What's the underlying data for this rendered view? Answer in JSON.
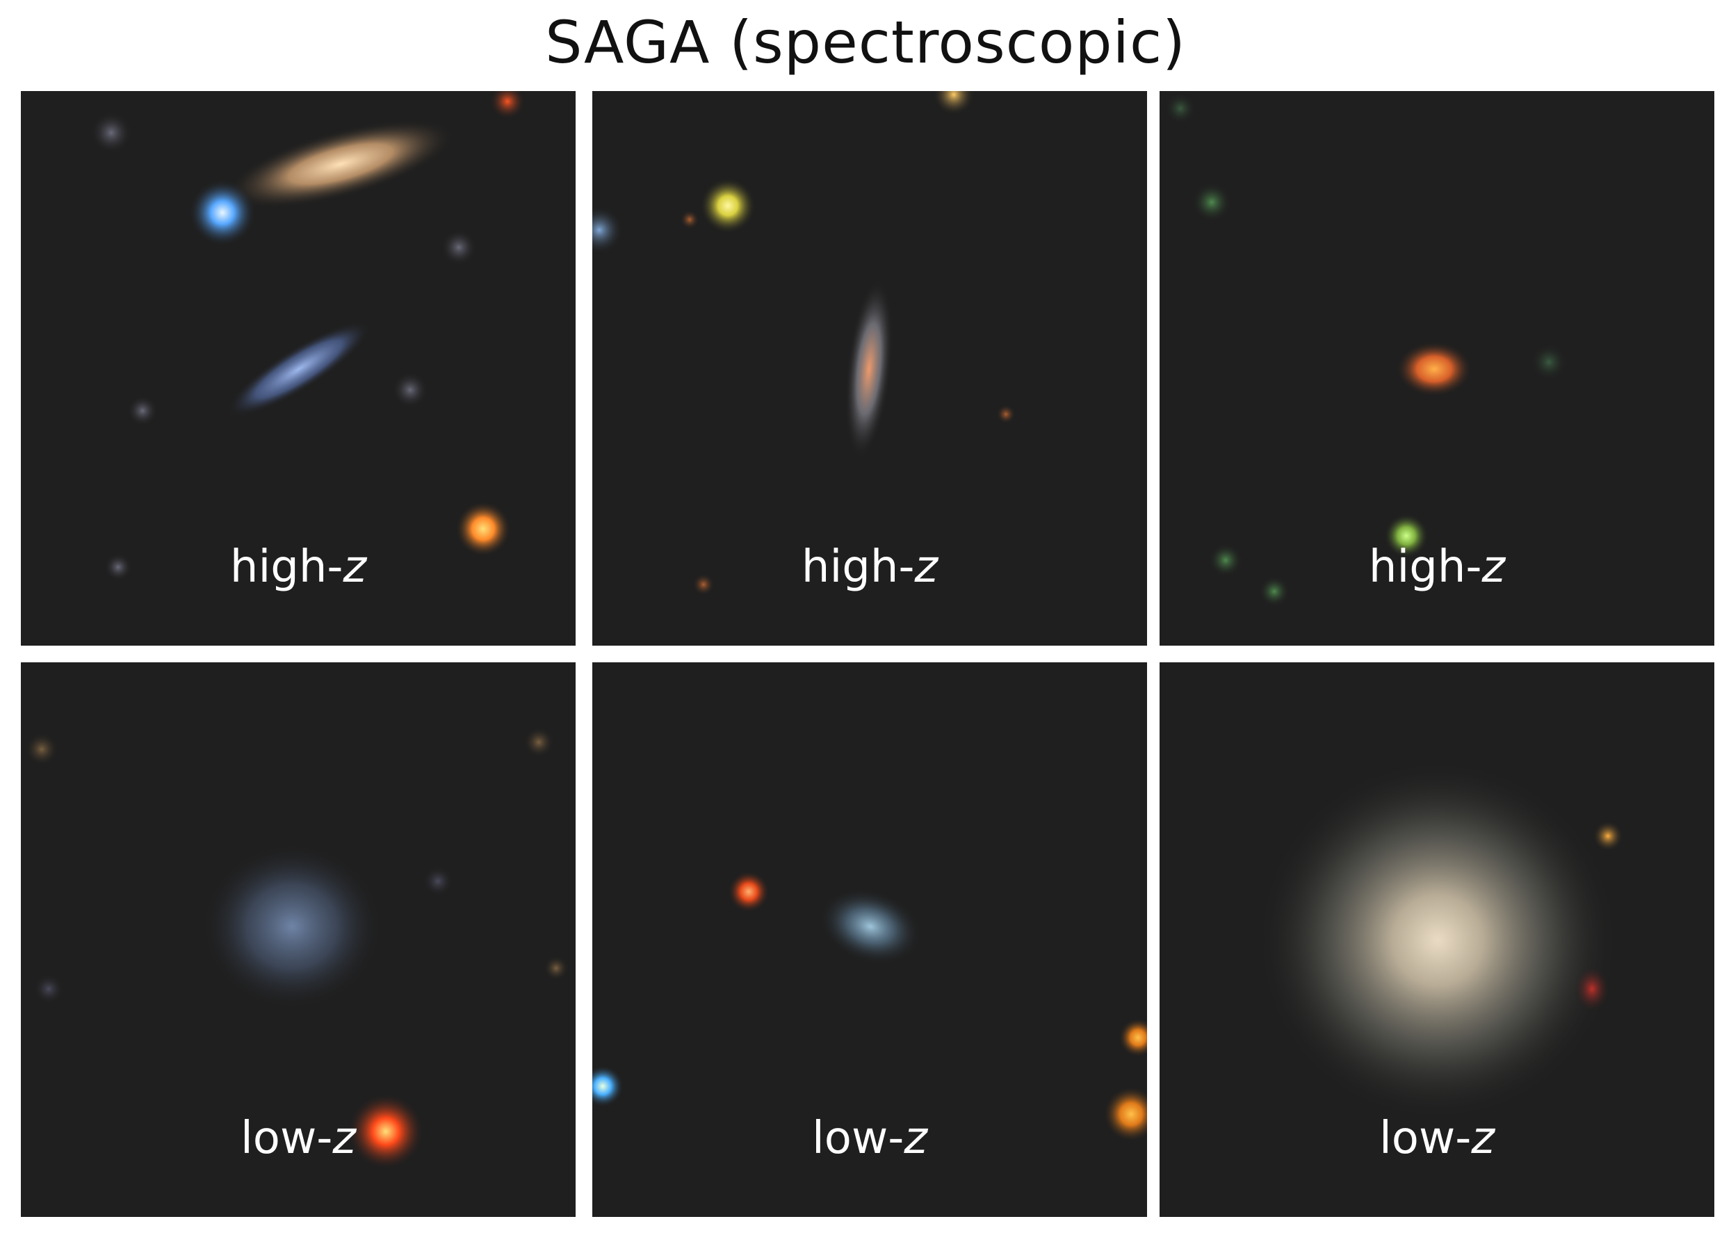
{
  "figure": {
    "title": "SAGA (spectroscopic)",
    "panels": [
      {
        "prefix": "high-",
        "variable": "z"
      },
      {
        "prefix": "high-",
        "variable": "z"
      },
      {
        "prefix": "high-",
        "variable": "z"
      },
      {
        "prefix": "low-",
        "variable": "z"
      },
      {
        "prefix": "low-",
        "variable": "z"
      },
      {
        "prefix": "low-",
        "variable": "z"
      }
    ]
  },
  "colors": {
    "background": "#ffffff",
    "sky": "#1f1f1f",
    "label": "#ffffff"
  }
}
